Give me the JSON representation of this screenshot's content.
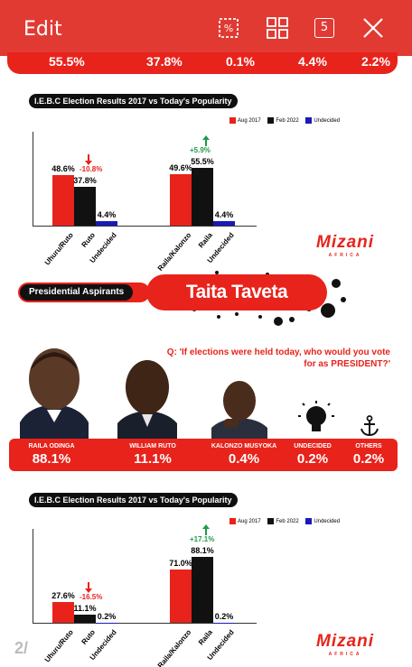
{
  "toolbar": {
    "edit_label": "Edit",
    "percent_icon": "percent-crop-icon",
    "grid_icon": "grid-icon",
    "count_badge": "5",
    "close_icon": "close-icon"
  },
  "top_strip": {
    "values": [
      "55.5%",
      "37.8%",
      "0.1%",
      "4.4%",
      "2.2%"
    ]
  },
  "colors": {
    "brand_red": "#e8231b",
    "aug2017": "#e8231b",
    "feb2022": "#111111",
    "undecided": "#1a1ab8",
    "up_arrow": "#1f9a48",
    "down_arrow": "#e8231b"
  },
  "chart_data": [
    {
      "type": "bar",
      "title": "I.E.B.C Election Results 2017 vs Today's Popularity",
      "legend": [
        "Aug 2017",
        "Feb 2022",
        "Undecided"
      ],
      "legend_position": "top-right",
      "groups": [
        {
          "categories": [
            "Uhuru/Ruto",
            "Ruto",
            "Undecided"
          ],
          "values": [
            48.6,
            37.8,
            4.4
          ],
          "labels": [
            "48.6%",
            "37.8%",
            "4.4%"
          ],
          "delta": "-10.8%",
          "delta_dir": "down"
        },
        {
          "categories": [
            "Raila/Kalonzo",
            "Raila",
            "Undecided"
          ],
          "values": [
            49.6,
            55.5,
            4.4
          ],
          "labels": [
            "49.6%",
            "55.5%",
            "4.4%"
          ],
          "delta": "+5.9%",
          "delta_dir": "up"
        }
      ],
      "brand": {
        "name": "Mizani",
        "sub": "AFRICA"
      }
    },
    {
      "type": "bar",
      "title": "I.E.B.C Election Results 2017 vs Today's Popularity",
      "legend": [
        "Aug 2017",
        "Feb 2022",
        "Undecided"
      ],
      "legend_position": "top-right",
      "groups": [
        {
          "categories": [
            "Uhuru/Ruto",
            "Ruto",
            "Undecided"
          ],
          "values": [
            27.6,
            11.1,
            0.2
          ],
          "labels": [
            "27.6%",
            "11.1%",
            "0.2%"
          ],
          "delta": "-16.5%",
          "delta_dir": "down"
        },
        {
          "categories": [
            "Raila/Kalonzo",
            "Raila",
            "Undecided"
          ],
          "values": [
            71.0,
            88.1,
            0.2
          ],
          "labels": [
            "71.0%",
            "88.1%",
            "0.2%"
          ],
          "delta": "+17.1%",
          "delta_dir": "up"
        }
      ],
      "brand": {
        "name": "Mizani",
        "sub": "AFRICA"
      }
    }
  ],
  "poll": {
    "tag": "Presidential Aspirants",
    "county": "Taita Taveta",
    "question": "Q: 'If elections were held today, who would you vote for as PRESIDENT?'",
    "results": [
      {
        "name": "RAILA ODINGA",
        "pct": "88.1%"
      },
      {
        "name": "WILLIAM RUTO",
        "pct": "11.1%"
      },
      {
        "name": "KALONZO MUSYOKA",
        "pct": "0.4%"
      },
      {
        "name": "UNDECIDED",
        "pct": "0.2%",
        "icon": "lightbulb-icon"
      },
      {
        "name": "OTHERS",
        "pct": "0.2%",
        "icon": "anchor-icon"
      }
    ]
  },
  "page_indicator": "2/"
}
